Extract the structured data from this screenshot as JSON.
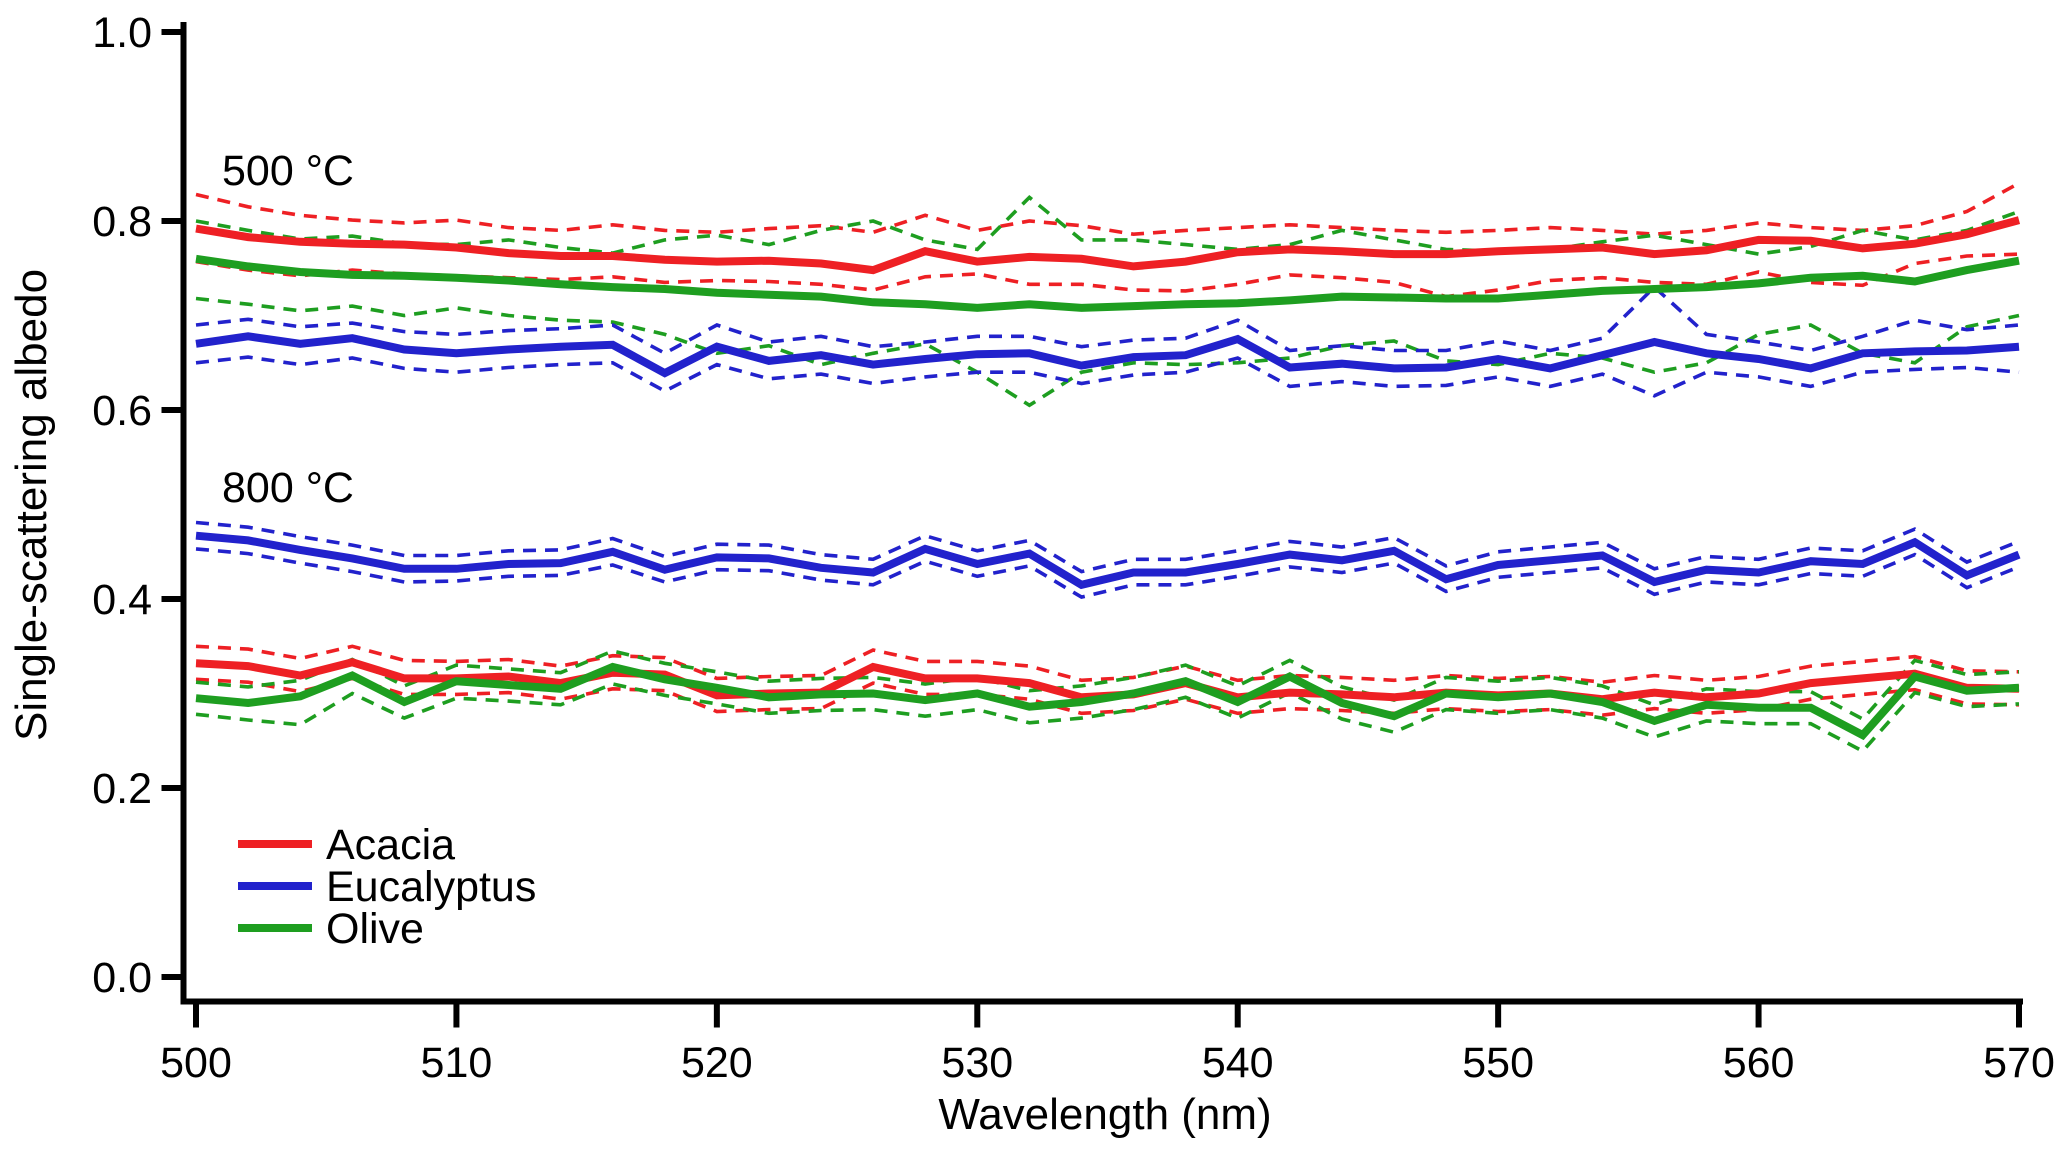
{
  "chart_data": {
    "type": "line",
    "title": "",
    "xlabel": "Wavelength (nm)",
    "ylabel": "Single-scattering albedo",
    "xlim": [
      500,
      570
    ],
    "ylim": [
      0.0,
      1.0
    ],
    "xticks": [
      "500",
      "510",
      "520",
      "530",
      "540",
      "550",
      "560",
      "570"
    ],
    "yticks": [
      "0.0",
      "0.2",
      "0.4",
      "0.6",
      "0.8",
      "1.0"
    ],
    "grid": false,
    "annotations": [
      {
        "text": "500 °C",
        "x": 501.0,
        "y": 0.838
      },
      {
        "text": "800 °C",
        "x": 501.0,
        "y": 0.503
      }
    ],
    "legend": {
      "position": "lower-left",
      "entries": [
        {
          "label": "Acacia",
          "color": "#ee2024"
        },
        {
          "label": "Eucalyptus",
          "color": "#2222cc"
        },
        {
          "label": "Olive",
          "color": "#1e9e20"
        }
      ]
    },
    "x": [
      500,
      502,
      504,
      506,
      508,
      510,
      512,
      514,
      516,
      518,
      520,
      522,
      524,
      526,
      528,
      530,
      532,
      534,
      536,
      538,
      540,
      542,
      544,
      546,
      548,
      550,
      552,
      554,
      556,
      558,
      560,
      562,
      564,
      566,
      568,
      570
    ],
    "series": [
      {
        "name": "acacia-500-upper",
        "species": "Acacia",
        "temperature": "500 °C",
        "role": "upper bound",
        "style": "dashed",
        "color": "#ee2024",
        "values": [
          0.828,
          0.815,
          0.806,
          0.801,
          0.798,
          0.801,
          0.793,
          0.79,
          0.796,
          0.79,
          0.788,
          0.792,
          0.795,
          0.788,
          0.806,
          0.79,
          0.8,
          0.795,
          0.786,
          0.79,
          0.793,
          0.796,
          0.793,
          0.79,
          0.788,
          0.79,
          0.793,
          0.79,
          0.786,
          0.79,
          0.798,
          0.793,
          0.79,
          0.795,
          0.81,
          0.84
        ]
      },
      {
        "name": "acacia-500-lower",
        "species": "Acacia",
        "temperature": "500 °C",
        "role": "lower bound",
        "style": "dashed",
        "color": "#ee2024",
        "values": [
          0.757,
          0.748,
          0.742,
          0.748,
          0.744,
          0.742,
          0.74,
          0.738,
          0.741,
          0.735,
          0.737,
          0.736,
          0.733,
          0.727,
          0.741,
          0.744,
          0.733,
          0.733,
          0.727,
          0.726,
          0.733,
          0.743,
          0.74,
          0.735,
          0.72,
          0.727,
          0.737,
          0.74,
          0.735,
          0.733,
          0.746,
          0.735,
          0.732,
          0.755,
          0.763,
          0.765
        ]
      },
      {
        "name": "olive-500-upper",
        "species": "Olive",
        "temperature": "500 °C",
        "role": "upper bound",
        "style": "dashed",
        "color": "#1e9e20",
        "values": [
          0.8,
          0.79,
          0.781,
          0.784,
          0.776,
          0.775,
          0.78,
          0.772,
          0.766,
          0.78,
          0.785,
          0.775,
          0.79,
          0.8,
          0.78,
          0.77,
          0.825,
          0.78,
          0.78,
          0.775,
          0.77,
          0.775,
          0.79,
          0.78,
          0.77,
          0.768,
          0.77,
          0.778,
          0.785,
          0.775,
          0.765,
          0.773,
          0.79,
          0.78,
          0.79,
          0.81
        ]
      },
      {
        "name": "olive-500-lower",
        "species": "Olive",
        "temperature": "500 °C",
        "role": "lower bound",
        "style": "dashed",
        "color": "#1e9e20",
        "values": [
          0.718,
          0.712,
          0.705,
          0.71,
          0.7,
          0.708,
          0.7,
          0.695,
          0.693,
          0.68,
          0.66,
          0.668,
          0.648,
          0.66,
          0.67,
          0.64,
          0.605,
          0.64,
          0.65,
          0.648,
          0.65,
          0.655,
          0.668,
          0.673,
          0.652,
          0.648,
          0.66,
          0.655,
          0.64,
          0.65,
          0.68,
          0.69,
          0.66,
          0.65,
          0.688,
          0.7
        ]
      },
      {
        "name": "eucalyptus-500-upper",
        "species": "Eucalyptus",
        "temperature": "500 °C",
        "role": "upper bound",
        "style": "dashed",
        "color": "#2222cc",
        "values": [
          0.69,
          0.696,
          0.688,
          0.692,
          0.683,
          0.68,
          0.684,
          0.686,
          0.69,
          0.66,
          0.69,
          0.672,
          0.678,
          0.667,
          0.672,
          0.678,
          0.678,
          0.667,
          0.674,
          0.676,
          0.695,
          0.663,
          0.668,
          0.663,
          0.663,
          0.673,
          0.663,
          0.676,
          0.73,
          0.68,
          0.672,
          0.663,
          0.678,
          0.695,
          0.685,
          0.69
        ]
      },
      {
        "name": "eucalyptus-500-lower",
        "species": "Eucalyptus",
        "temperature": "500 °C",
        "role": "lower bound",
        "style": "dashed",
        "color": "#2222cc",
        "values": [
          0.65,
          0.656,
          0.648,
          0.655,
          0.644,
          0.64,
          0.645,
          0.648,
          0.65,
          0.62,
          0.648,
          0.633,
          0.638,
          0.628,
          0.635,
          0.64,
          0.64,
          0.628,
          0.637,
          0.64,
          0.655,
          0.625,
          0.63,
          0.625,
          0.626,
          0.635,
          0.625,
          0.638,
          0.615,
          0.64,
          0.635,
          0.625,
          0.64,
          0.643,
          0.645,
          0.64
        ]
      },
      {
        "name": "acacia-800-upper",
        "species": "Acacia",
        "temperature": "800 °C",
        "role": "upper bound",
        "style": "dashed",
        "color": "#ee2024",
        "values": [
          0.35,
          0.347,
          0.337,
          0.35,
          0.335,
          0.334,
          0.336,
          0.329,
          0.34,
          0.338,
          0.316,
          0.318,
          0.319,
          0.346,
          0.334,
          0.334,
          0.329,
          0.314,
          0.317,
          0.329,
          0.314,
          0.319,
          0.317,
          0.314,
          0.319,
          0.316,
          0.318,
          0.312,
          0.319,
          0.314,
          0.318,
          0.329,
          0.334,
          0.339,
          0.324,
          0.323
        ]
      },
      {
        "name": "acacia-800-lower",
        "species": "Acacia",
        "temperature": "800 °C",
        "role": "lower bound",
        "style": "dashed",
        "color": "#ee2024",
        "values": [
          0.315,
          0.312,
          0.302,
          0.316,
          0.299,
          0.299,
          0.301,
          0.294,
          0.305,
          0.303,
          0.281,
          0.283,
          0.284,
          0.311,
          0.299,
          0.299,
          0.294,
          0.279,
          0.282,
          0.294,
          0.279,
          0.284,
          0.282,
          0.279,
          0.284,
          0.281,
          0.283,
          0.277,
          0.284,
          0.279,
          0.283,
          0.294,
          0.299,
          0.304,
          0.289,
          0.288
        ]
      },
      {
        "name": "olive-800-upper",
        "species": "Olive",
        "temperature": "800 °C",
        "role": "upper bound",
        "style": "dashed",
        "color": "#1e9e20",
        "values": [
          0.312,
          0.307,
          0.314,
          0.336,
          0.308,
          0.33,
          0.326,
          0.322,
          0.345,
          0.332,
          0.323,
          0.313,
          0.316,
          0.317,
          0.31,
          0.317,
          0.303,
          0.308,
          0.317,
          0.33,
          0.308,
          0.335,
          0.307,
          0.293,
          0.317,
          0.313,
          0.317,
          0.308,
          0.288,
          0.305,
          0.302,
          0.302,
          0.273,
          0.335,
          0.32,
          0.323
        ]
      },
      {
        "name": "olive-800-lower",
        "species": "Olive",
        "temperature": "800 °C",
        "role": "lower bound",
        "style": "dashed",
        "color": "#1e9e20",
        "values": [
          0.278,
          0.272,
          0.267,
          0.3,
          0.274,
          0.295,
          0.292,
          0.288,
          0.31,
          0.298,
          0.289,
          0.279,
          0.282,
          0.283,
          0.276,
          0.283,
          0.269,
          0.274,
          0.283,
          0.296,
          0.274,
          0.301,
          0.273,
          0.259,
          0.283,
          0.279,
          0.283,
          0.274,
          0.254,
          0.271,
          0.268,
          0.268,
          0.239,
          0.301,
          0.286,
          0.289
        ]
      },
      {
        "name": "eucalyptus-800-upper",
        "species": "Eucalyptus",
        "temperature": "800 °C",
        "role": "upper bound",
        "style": "dashed",
        "color": "#2222cc",
        "values": [
          0.481,
          0.476,
          0.466,
          0.457,
          0.446,
          0.446,
          0.451,
          0.452,
          0.464,
          0.445,
          0.458,
          0.457,
          0.447,
          0.442,
          0.467,
          0.451,
          0.462,
          0.429,
          0.442,
          0.442,
          0.451,
          0.461,
          0.455,
          0.465,
          0.435,
          0.45,
          0.455,
          0.46,
          0.432,
          0.445,
          0.442,
          0.454,
          0.451,
          0.474,
          0.439,
          0.461
        ]
      },
      {
        "name": "eucalyptus-800-lower",
        "species": "Eucalyptus",
        "temperature": "800 °C",
        "role": "lower bound",
        "style": "dashed",
        "color": "#2222cc",
        "values": [
          0.453,
          0.448,
          0.438,
          0.429,
          0.418,
          0.419,
          0.424,
          0.425,
          0.436,
          0.418,
          0.431,
          0.43,
          0.42,
          0.415,
          0.44,
          0.424,
          0.435,
          0.402,
          0.415,
          0.415,
          0.424,
          0.434,
          0.428,
          0.438,
          0.408,
          0.423,
          0.428,
          0.433,
          0.405,
          0.418,
          0.415,
          0.427,
          0.424,
          0.447,
          0.412,
          0.434
        ]
      },
      {
        "name": "acacia-500-mean",
        "species": "Acacia",
        "temperature": "500 °C",
        "role": "mean",
        "style": "solid",
        "color": "#ee2024",
        "values": [
          0.792,
          0.783,
          0.778,
          0.776,
          0.775,
          0.772,
          0.766,
          0.763,
          0.763,
          0.759,
          0.757,
          0.758,
          0.755,
          0.748,
          0.768,
          0.757,
          0.762,
          0.76,
          0.752,
          0.757,
          0.767,
          0.77,
          0.768,
          0.765,
          0.765,
          0.768,
          0.77,
          0.772,
          0.765,
          0.769,
          0.78,
          0.779,
          0.771,
          0.776,
          0.786,
          0.801
        ]
      },
      {
        "name": "olive-500-mean",
        "species": "Olive",
        "temperature": "500 °C",
        "role": "mean",
        "style": "solid",
        "color": "#1e9e20",
        "values": [
          0.76,
          0.752,
          0.746,
          0.743,
          0.742,
          0.74,
          0.737,
          0.733,
          0.73,
          0.728,
          0.724,
          0.722,
          0.72,
          0.714,
          0.712,
          0.708,
          0.712,
          0.708,
          0.71,
          0.712,
          0.713,
          0.716,
          0.72,
          0.719,
          0.718,
          0.718,
          0.722,
          0.726,
          0.728,
          0.73,
          0.734,
          0.74,
          0.742,
          0.736,
          0.748,
          0.758
        ]
      },
      {
        "name": "eucalyptus-500-mean",
        "species": "Eucalyptus",
        "temperature": "500 °C",
        "role": "mean",
        "style": "solid",
        "color": "#2222cc",
        "values": [
          0.67,
          0.678,
          0.67,
          0.676,
          0.664,
          0.66,
          0.664,
          0.667,
          0.669,
          0.639,
          0.667,
          0.652,
          0.658,
          0.648,
          0.654,
          0.659,
          0.66,
          0.647,
          0.656,
          0.658,
          0.675,
          0.645,
          0.649,
          0.644,
          0.645,
          0.654,
          0.644,
          0.658,
          0.672,
          0.66,
          0.654,
          0.644,
          0.66,
          0.662,
          0.663,
          0.667
        ]
      },
      {
        "name": "eucalyptus-800-mean",
        "species": "Eucalyptus",
        "temperature": "800 °C",
        "role": "mean",
        "style": "solid",
        "color": "#2222cc",
        "values": [
          0.467,
          0.462,
          0.452,
          0.443,
          0.432,
          0.432,
          0.437,
          0.438,
          0.45,
          0.431,
          0.444,
          0.443,
          0.433,
          0.428,
          0.453,
          0.437,
          0.448,
          0.415,
          0.428,
          0.428,
          0.437,
          0.447,
          0.441,
          0.451,
          0.421,
          0.436,
          0.441,
          0.446,
          0.418,
          0.431,
          0.428,
          0.44,
          0.437,
          0.46,
          0.425,
          0.447
        ]
      },
      {
        "name": "acacia-800-mean",
        "species": "Acacia",
        "temperature": "800 °C",
        "role": "mean",
        "style": "solid",
        "color": "#ee2024",
        "values": [
          0.332,
          0.329,
          0.319,
          0.333,
          0.316,
          0.316,
          0.318,
          0.311,
          0.322,
          0.32,
          0.298,
          0.3,
          0.301,
          0.328,
          0.316,
          0.316,
          0.311,
          0.296,
          0.299,
          0.311,
          0.296,
          0.301,
          0.299,
          0.296,
          0.301,
          0.298,
          0.3,
          0.294,
          0.301,
          0.296,
          0.3,
          0.311,
          0.316,
          0.321,
          0.306,
          0.305
        ]
      },
      {
        "name": "olive-800-mean",
        "species": "Olive",
        "temperature": "800 °C",
        "role": "mean",
        "style": "solid",
        "color": "#1e9e20",
        "values": [
          0.295,
          0.29,
          0.297,
          0.319,
          0.291,
          0.313,
          0.309,
          0.305,
          0.328,
          0.315,
          0.306,
          0.296,
          0.299,
          0.3,
          0.293,
          0.3,
          0.286,
          0.291,
          0.3,
          0.313,
          0.291,
          0.318,
          0.29,
          0.276,
          0.3,
          0.296,
          0.3,
          0.291,
          0.271,
          0.288,
          0.285,
          0.285,
          0.256,
          0.318,
          0.303,
          0.306
        ]
      }
    ]
  }
}
